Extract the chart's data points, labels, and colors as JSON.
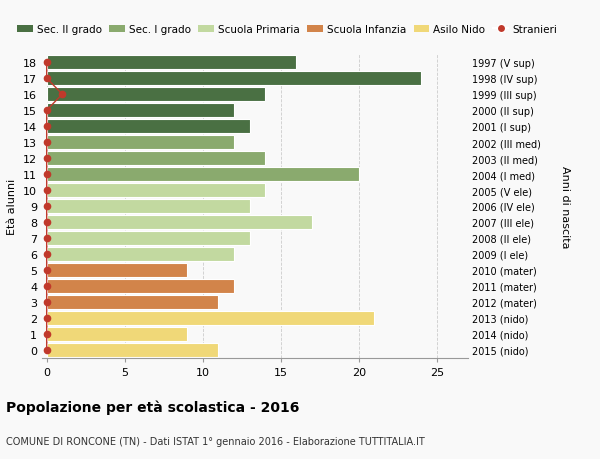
{
  "ages": [
    18,
    17,
    16,
    15,
    14,
    13,
    12,
    11,
    10,
    9,
    8,
    7,
    6,
    5,
    4,
    3,
    2,
    1,
    0
  ],
  "right_labels": [
    "1997 (V sup)",
    "1998 (IV sup)",
    "1999 (III sup)",
    "2000 (II sup)",
    "2001 (I sup)",
    "2002 (III med)",
    "2003 (II med)",
    "2004 (I med)",
    "2005 (V ele)",
    "2006 (IV ele)",
    "2007 (III ele)",
    "2008 (II ele)",
    "2009 (I ele)",
    "2010 (mater)",
    "2011 (mater)",
    "2012 (mater)",
    "2013 (nido)",
    "2014 (nido)",
    "2015 (nido)"
  ],
  "values": [
    16,
    24,
    14,
    12,
    13,
    12,
    14,
    20,
    14,
    13,
    17,
    13,
    12,
    9,
    12,
    11,
    21,
    9,
    11
  ],
  "colors": [
    "#4a7043",
    "#4a7043",
    "#4a7043",
    "#4a7043",
    "#4a7043",
    "#8aaa6e",
    "#8aaa6e",
    "#8aaa6e",
    "#c2d9a0",
    "#c2d9a0",
    "#c2d9a0",
    "#c2d9a0",
    "#c2d9a0",
    "#d2844a",
    "#d2844a",
    "#d2844a",
    "#f0d878",
    "#f0d878",
    "#f0d878"
  ],
  "stranieri_values": [
    0,
    0,
    1,
    0,
    0,
    0,
    0,
    0,
    0,
    0,
    0,
    0,
    0,
    0,
    0,
    0,
    0,
    0,
    0
  ],
  "stranieri_color": "#c0392b",
  "legend_labels": [
    "Sec. II grado",
    "Sec. I grado",
    "Scuola Primaria",
    "Scuola Infanzia",
    "Asilo Nido",
    "Stranieri"
  ],
  "legend_colors": [
    "#4a7043",
    "#8aaa6e",
    "#c2d9a0",
    "#d2844a",
    "#f0d878",
    "#c0392b"
  ],
  "ylabel": "Età alunni",
  "ylabel_right": "Anni di nascita",
  "xlim_left": -0.3,
  "xlim_right": 27,
  "xticks": [
    0,
    5,
    10,
    15,
    20,
    25
  ],
  "title_main": "Popolazione per età scolastica - 2016",
  "title_sub": "COMUNE DI RONCONE (TN) - Dati ISTAT 1° gennaio 2016 - Elaborazione TUTTITALIA.IT",
  "bg_color": "#f9f9f9",
  "bar_height": 0.85,
  "grid_color": "#cccccc",
  "figsize": [
    6.0,
    4.6
  ],
  "dpi": 100
}
